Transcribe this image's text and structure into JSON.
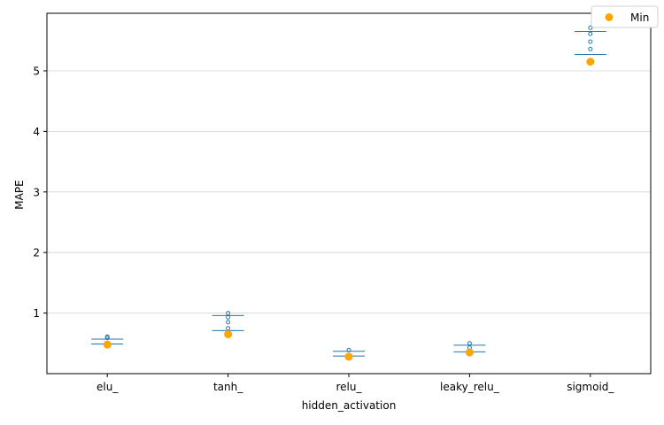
{
  "chart_data": {
    "type": "box",
    "xlabel": "hidden_activation",
    "ylabel": "MAPE",
    "categories": [
      "elu_",
      "tanh_",
      "relu_",
      "leaky_relu_",
      "sigmoid_"
    ],
    "ylim": [
      0.0,
      5.95
    ],
    "yticks": [
      1,
      2,
      3,
      4,
      5
    ],
    "grid": "y",
    "legend": {
      "position": "top-right",
      "entries": [
        "Min"
      ]
    },
    "box_color": "#1f77b4",
    "min_color": "#ffa500",
    "boxes": [
      {
        "category": "elu_",
        "q1": 0.49,
        "q3": 0.57,
        "outliers": [
          0.59,
          0.61
        ],
        "min": 0.48
      },
      {
        "category": "tanh_",
        "q1": 0.71,
        "q3": 0.96,
        "outliers": [
          0.75,
          0.85,
          0.93,
          1.0
        ],
        "min": 0.65
      },
      {
        "category": "relu_",
        "q1": 0.29,
        "q3": 0.37,
        "outliers": [
          0.39
        ],
        "min": 0.28
      },
      {
        "category": "leaky_relu_",
        "q1": 0.36,
        "q3": 0.47,
        "outliers": [
          0.43,
          0.5
        ],
        "min": 0.35
      },
      {
        "category": "sigmoid_",
        "q1": 5.27,
        "q3": 5.65,
        "outliers": [
          5.36,
          5.48,
          5.61,
          5.71
        ],
        "min": 5.15
      }
    ]
  }
}
